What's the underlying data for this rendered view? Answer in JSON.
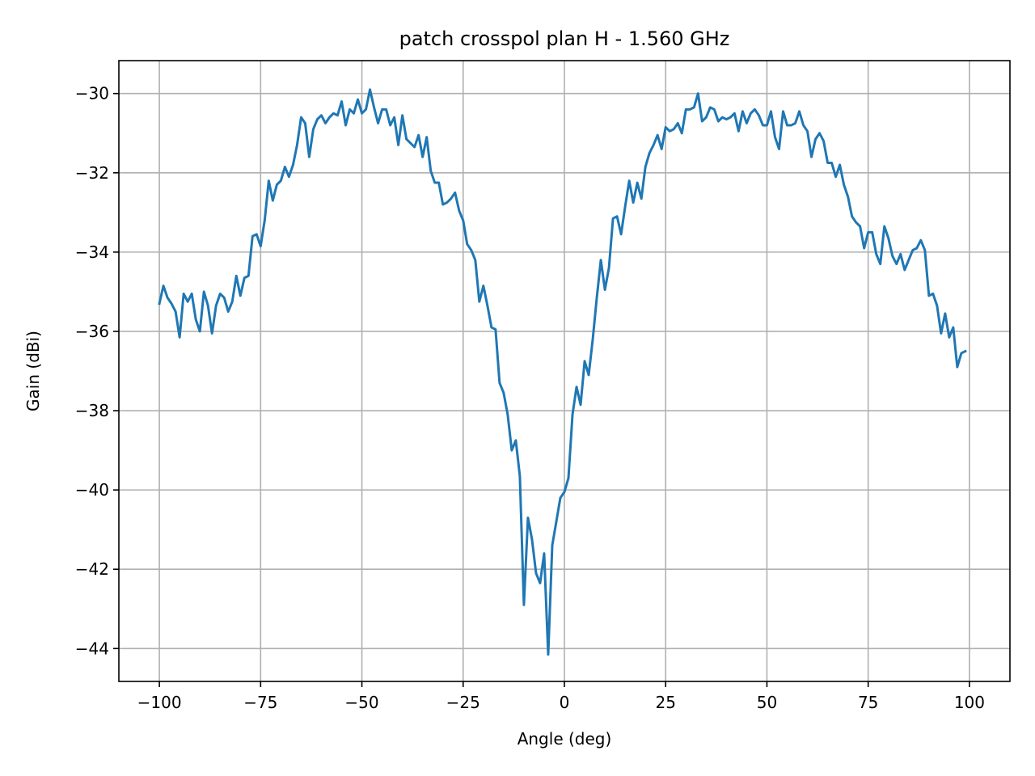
{
  "chart_data": {
    "type": "line",
    "title": "patch crosspol plan H - 1.560 GHz",
    "xlabel": "Angle (deg)",
    "ylabel": "Gain (dBi)",
    "xlim": [
      -110,
      110
    ],
    "ylim": [
      -44.83,
      -29.17
    ],
    "xticks": [
      -100,
      -75,
      -50,
      -25,
      0,
      25,
      50,
      75,
      100
    ],
    "xtick_labels": [
      "−100",
      "−75",
      "−50",
      "−25",
      "0",
      "25",
      "50",
      "75",
      "100"
    ],
    "yticks": [
      -30,
      -32,
      -34,
      -36,
      -38,
      -40,
      -42,
      -44
    ],
    "ytick_labels": [
      "−30",
      "−32",
      "−34",
      "−36",
      "−38",
      "−40",
      "−42",
      "−44"
    ],
    "grid": true,
    "legend": "none",
    "series": [
      {
        "color": "#1f77b4",
        "points": [
          [
            -100,
            -35.3
          ],
          [
            -99,
            -34.85
          ],
          [
            -98,
            -35.15
          ],
          [
            -97,
            -35.3
          ],
          [
            -96,
            -35.5
          ],
          [
            -95,
            -36.15
          ],
          [
            -94,
            -35.05
          ],
          [
            -93,
            -35.25
          ],
          [
            -92,
            -35.05
          ],
          [
            -91,
            -35.7
          ],
          [
            -90,
            -36.0
          ],
          [
            -89,
            -35.0
          ],
          [
            -88,
            -35.35
          ],
          [
            -87,
            -36.05
          ],
          [
            -86,
            -35.35
          ],
          [
            -85,
            -35.05
          ],
          [
            -84,
            -35.15
          ],
          [
            -83,
            -35.5
          ],
          [
            -82,
            -35.25
          ],
          [
            -81,
            -34.6
          ],
          [
            -80,
            -35.1
          ],
          [
            -79,
            -34.65
          ],
          [
            -78,
            -34.6
          ],
          [
            -77,
            -33.6
          ],
          [
            -76,
            -33.55
          ],
          [
            -75,
            -33.85
          ],
          [
            -74,
            -33.2
          ],
          [
            -73,
            -32.2
          ],
          [
            -72,
            -32.7
          ],
          [
            -71,
            -32.3
          ],
          [
            -70,
            -32.2
          ],
          [
            -69,
            -31.85
          ],
          [
            -68,
            -32.1
          ],
          [
            -67,
            -31.8
          ],
          [
            -66,
            -31.3
          ],
          [
            -65,
            -30.6
          ],
          [
            -64,
            -30.75
          ],
          [
            -63,
            -31.6
          ],
          [
            -62,
            -30.9
          ],
          [
            -61,
            -30.65
          ],
          [
            -60,
            -30.55
          ],
          [
            -59,
            -30.75
          ],
          [
            -58,
            -30.6
          ],
          [
            -57,
            -30.5
          ],
          [
            -56,
            -30.55
          ],
          [
            -55,
            -30.2
          ],
          [
            -54,
            -30.8
          ],
          [
            -53,
            -30.4
          ],
          [
            -52,
            -30.5
          ],
          [
            -51,
            -30.15
          ],
          [
            -50,
            -30.5
          ],
          [
            -49,
            -30.4
          ],
          [
            -48,
            -29.9
          ],
          [
            -47,
            -30.35
          ],
          [
            -46,
            -30.75
          ],
          [
            -45,
            -30.4
          ],
          [
            -44,
            -30.4
          ],
          [
            -43,
            -30.8
          ],
          [
            -42,
            -30.6
          ],
          [
            -41,
            -31.3
          ],
          [
            -40,
            -30.55
          ],
          [
            -39,
            -31.15
          ],
          [
            -38,
            -31.25
          ],
          [
            -37,
            -31.35
          ],
          [
            -36,
            -31.05
          ],
          [
            -35,
            -31.6
          ],
          [
            -34,
            -31.1
          ],
          [
            -33,
            -31.95
          ],
          [
            -32,
            -32.25
          ],
          [
            -31,
            -32.25
          ],
          [
            -30,
            -32.8
          ],
          [
            -29,
            -32.75
          ],
          [
            -28,
            -32.65
          ],
          [
            -27,
            -32.5
          ],
          [
            -26,
            -32.95
          ],
          [
            -25,
            -33.2
          ],
          [
            -24,
            -33.8
          ],
          [
            -23,
            -33.95
          ],
          [
            -22,
            -34.2
          ],
          [
            -21,
            -35.25
          ],
          [
            -20,
            -34.85
          ],
          [
            -19,
            -35.35
          ],
          [
            -18,
            -35.9
          ],
          [
            -17,
            -35.95
          ],
          [
            -16,
            -37.3
          ],
          [
            -15,
            -37.55
          ],
          [
            -14,
            -38.1
          ],
          [
            -13,
            -39.0
          ],
          [
            -12,
            -38.75
          ],
          [
            -11,
            -39.65
          ],
          [
            -10,
            -42.9
          ],
          [
            -9,
            -40.7
          ],
          [
            -8,
            -41.25
          ],
          [
            -7,
            -42.1
          ],
          [
            -6,
            -42.35
          ],
          [
            -5,
            -41.6
          ],
          [
            -4,
            -44.15
          ],
          [
            -3,
            -41.4
          ],
          [
            -2,
            -40.8
          ],
          [
            -1,
            -40.2
          ],
          [
            0,
            -40.05
          ],
          [
            1,
            -39.7
          ],
          [
            2,
            -38.1
          ],
          [
            3,
            -37.4
          ],
          [
            4,
            -37.85
          ],
          [
            5,
            -36.75
          ],
          [
            6,
            -37.1
          ],
          [
            7,
            -36.2
          ],
          [
            8,
            -35.15
          ],
          [
            9,
            -34.2
          ],
          [
            10,
            -34.95
          ],
          [
            11,
            -34.4
          ],
          [
            12,
            -33.15
          ],
          [
            13,
            -33.1
          ],
          [
            14,
            -33.55
          ],
          [
            15,
            -32.85
          ],
          [
            16,
            -32.2
          ],
          [
            17,
            -32.75
          ],
          [
            18,
            -32.25
          ],
          [
            19,
            -32.65
          ],
          [
            20,
            -31.85
          ],
          [
            21,
            -31.5
          ],
          [
            22,
            -31.3
          ],
          [
            23,
            -31.05
          ],
          [
            24,
            -31.4
          ],
          [
            25,
            -30.85
          ],
          [
            26,
            -30.95
          ],
          [
            27,
            -30.9
          ],
          [
            28,
            -30.75
          ],
          [
            29,
            -31.0
          ],
          [
            30,
            -30.4
          ],
          [
            31,
            -30.4
          ],
          [
            32,
            -30.35
          ],
          [
            33,
            -30.0
          ],
          [
            34,
            -30.7
          ],
          [
            35,
            -30.6
          ],
          [
            36,
            -30.35
          ],
          [
            37,
            -30.4
          ],
          [
            38,
            -30.7
          ],
          [
            39,
            -30.6
          ],
          [
            40,
            -30.65
          ],
          [
            41,
            -30.6
          ],
          [
            42,
            -30.5
          ],
          [
            43,
            -30.95
          ],
          [
            44,
            -30.45
          ],
          [
            45,
            -30.75
          ],
          [
            46,
            -30.5
          ],
          [
            47,
            -30.4
          ],
          [
            48,
            -30.55
          ],
          [
            49,
            -30.8
          ],
          [
            50,
            -30.8
          ],
          [
            51,
            -30.45
          ],
          [
            52,
            -31.1
          ],
          [
            53,
            -31.4
          ],
          [
            54,
            -30.45
          ],
          [
            55,
            -30.8
          ],
          [
            56,
            -30.8
          ],
          [
            57,
            -30.75
          ],
          [
            58,
            -30.45
          ],
          [
            59,
            -30.8
          ],
          [
            60,
            -30.95
          ],
          [
            61,
            -31.6
          ],
          [
            62,
            -31.15
          ],
          [
            63,
            -31.0
          ],
          [
            64,
            -31.2
          ],
          [
            65,
            -31.75
          ],
          [
            66,
            -31.75
          ],
          [
            67,
            -32.1
          ],
          [
            68,
            -31.8
          ],
          [
            69,
            -32.3
          ],
          [
            70,
            -32.6
          ],
          [
            71,
            -33.1
          ],
          [
            72,
            -33.25
          ],
          [
            73,
            -33.35
          ],
          [
            74,
            -33.9
          ],
          [
            75,
            -33.5
          ],
          [
            76,
            -33.5
          ],
          [
            77,
            -34.05
          ],
          [
            78,
            -34.3
          ],
          [
            79,
            -33.35
          ],
          [
            80,
            -33.65
          ],
          [
            81,
            -34.1
          ],
          [
            82,
            -34.3
          ],
          [
            83,
            -34.05
          ],
          [
            84,
            -34.45
          ],
          [
            85,
            -34.2
          ],
          [
            86,
            -33.95
          ],
          [
            87,
            -33.9
          ],
          [
            88,
            -33.7
          ],
          [
            89,
            -33.95
          ],
          [
            90,
            -35.1
          ],
          [
            91,
            -35.05
          ],
          [
            92,
            -35.35
          ],
          [
            93,
            -36.05
          ],
          [
            94,
            -35.55
          ],
          [
            95,
            -36.15
          ],
          [
            96,
            -35.9
          ],
          [
            97,
            -36.9
          ],
          [
            98,
            -36.55
          ],
          [
            99,
            -36.5
          ]
        ]
      }
    ]
  }
}
